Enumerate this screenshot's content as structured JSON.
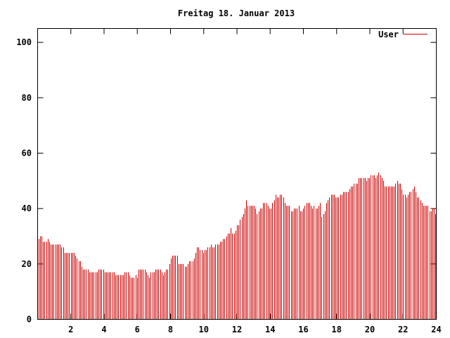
{
  "chart_data": {
    "type": "bar",
    "title": "Freitag 18. Januar 2013",
    "xlabel": "",
    "ylabel": "",
    "xlim": [
      0,
      24
    ],
    "ylim": [
      0,
      105
    ],
    "yticks": [
      0,
      20,
      40,
      60,
      80,
      100
    ],
    "xticks": [
      2,
      4,
      6,
      8,
      10,
      12,
      14,
      16,
      18,
      20,
      22,
      24
    ],
    "grid": false,
    "legend_position": "top-right",
    "series": [
      {
        "name": "User",
        "color": "#cc0000",
        "step_hours": 0.1,
        "values": [
          29,
          30,
          30,
          28,
          28,
          28,
          29,
          28,
          27,
          27,
          27,
          27,
          27,
          27,
          27,
          26,
          26,
          24,
          24,
          24,
          24,
          24,
          24,
          24,
          23,
          22,
          21,
          21,
          19,
          18,
          18,
          18,
          18,
          17,
          17,
          17,
          17,
          17,
          17,
          18,
          18,
          18,
          18,
          17,
          17,
          17,
          17,
          17,
          17,
          17,
          16,
          16,
          16,
          16,
          16,
          16,
          17,
          17,
          17,
          16,
          15,
          15,
          15,
          16,
          15,
          18,
          18,
          18,
          18,
          18,
          17,
          16,
          15,
          17,
          17,
          17,
          18,
          18,
          18,
          18,
          17,
          16,
          17,
          18,
          18,
          20,
          22,
          23,
          23,
          23,
          23,
          20,
          20,
          20,
          20,
          19,
          19,
          20,
          21,
          21,
          21,
          22,
          24,
          26,
          26,
          25,
          25,
          24,
          25,
          25,
          26,
          26,
          27,
          26,
          26,
          27,
          27,
          27,
          28,
          28,
          29,
          29,
          30,
          31,
          31,
          33,
          31,
          31,
          32,
          34,
          34,
          36,
          37,
          38,
          40,
          43,
          41,
          41,
          41,
          41,
          41,
          40,
          38,
          39,
          40,
          40,
          42,
          42,
          42,
          41,
          40,
          40,
          42,
          43,
          45,
          44,
          44,
          45,
          45,
          44,
          42,
          41,
          41,
          41,
          39,
          39,
          40,
          40,
          40,
          41,
          39,
          39,
          40,
          41,
          42,
          42,
          42,
          41,
          40,
          41,
          40,
          40,
          41,
          42,
          37,
          38,
          39,
          42,
          43,
          44,
          45,
          45,
          45,
          44,
          44,
          44,
          45,
          45,
          46,
          46,
          46,
          46,
          47,
          48,
          48,
          49,
          49,
          49,
          51,
          51,
          51,
          51,
          51,
          50,
          51,
          51,
          52,
          52,
          52,
          51,
          52,
          53,
          52,
          51,
          50,
          48,
          48,
          48,
          48,
          48,
          48,
          48,
          49,
          50,
          49,
          49,
          47,
          45,
          45,
          44,
          45,
          46,
          46,
          47,
          48,
          46,
          44,
          44,
          43,
          42,
          41,
          41,
          41,
          41,
          39,
          39,
          40,
          40,
          38
        ]
      }
    ]
  }
}
